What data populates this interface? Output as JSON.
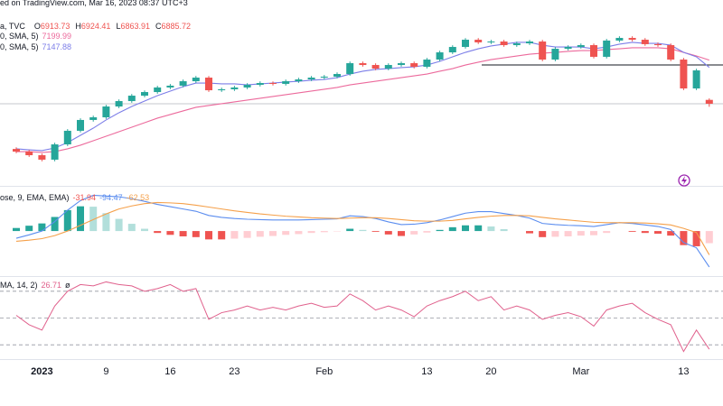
{
  "chart_data": [
    {
      "type": "candlestick",
      "source": "ed on TradingView.com, Mar 16, 2023 08:37 UTC+3",
      "title": "a, TVC",
      "ohlc_prefixes": [
        "O",
        "H",
        "L",
        "C"
      ],
      "categories": [
        null,
        null,
        "2023",
        null,
        null,
        null,
        null,
        "9",
        null,
        null,
        null,
        null,
        "16",
        null,
        null,
        null,
        null,
        "23",
        null,
        null,
        null,
        null,
        null,
        null,
        "Feb",
        null,
        null,
        null,
        null,
        null,
        null,
        null,
        "13",
        null,
        null,
        null,
        null,
        "20",
        null,
        null,
        null,
        null,
        null,
        null,
        "Mar",
        null,
        null,
        null,
        null,
        null,
        null,
        null,
        "13",
        null,
        null
      ],
      "open": [
        6560,
        6541,
        6515,
        6483,
        6593,
        6691,
        6769,
        6788,
        6866,
        6905,
        6944,
        6970,
        7003,
        7016,
        7048,
        7074,
        6983,
        6990,
        7003,
        7022,
        7035,
        7029,
        7048,
        7061,
        7074,
        7081,
        7100,
        7178,
        7165,
        7139,
        7165,
        7178,
        7152,
        7204,
        7256,
        7295,
        7347,
        7328,
        7334,
        7308,
        7321,
        7334,
        7204,
        7282,
        7295,
        7308,
        7224,
        7341,
        7360,
        7347,
        7315,
        7308,
        7204,
        6996,
        6913.73
      ],
      "high": [
        6572,
        6553,
        6527,
        6605,
        6703,
        6781,
        6800,
        6878,
        6917,
        6956,
        6982,
        7015,
        7028,
        7060,
        7086,
        7086,
        7002,
        7015,
        7034,
        7047,
        7047,
        7060,
        7073,
        7086,
        7093,
        7112,
        7190,
        7190,
        7177,
        7177,
        7190,
        7190,
        7216,
        7268,
        7307,
        7359,
        7359,
        7346,
        7346,
        7333,
        7346,
        7346,
        7294,
        7307,
        7320,
        7320,
        7353,
        7372,
        7372,
        7359,
        7327,
        7320,
        7216,
        7138,
        6924.41
      ],
      "low": [
        6529,
        6503,
        6471,
        6471,
        6581,
        6679,
        6757,
        6776,
        6854,
        6893,
        6932,
        6958,
        6991,
        7004,
        7036,
        6971,
        6971,
        6978,
        6991,
        7010,
        7017,
        7017,
        7036,
        7049,
        7062,
        7069,
        7088,
        7153,
        7127,
        7127,
        7153,
        7140,
        7140,
        7192,
        7244,
        7283,
        7316,
        7316,
        7296,
        7296,
        7309,
        7192,
        7192,
        7270,
        7283,
        7212,
        7212,
        7329,
        7335,
        7303,
        7296,
        7192,
        6984,
        6984,
        6863.91
      ],
      "close": [
        6541,
        6515,
        6483,
        6593,
        6691,
        6769,
        6788,
        6866,
        6905,
        6944,
        6970,
        7003,
        7016,
        7048,
        7074,
        6983,
        6990,
        7003,
        7022,
        7035,
        7029,
        7048,
        7061,
        7074,
        7081,
        7100,
        7178,
        7165,
        7139,
        7165,
        7178,
        7152,
        7204,
        7256,
        7295,
        7347,
        7328,
        7334,
        7308,
        7321,
        7334,
        7204,
        7282,
        7295,
        7308,
        7224,
        7341,
        7360,
        7347,
        7315,
        7308,
        7204,
        6996,
        7126,
        6885.72
      ],
      "up_color": "#26a69a",
      "down_color": "#ef5350",
      "series": [
        {
          "name": "0, SMA, 5)",
          "color": "#ec6a9c",
          "values": [
            6541,
            6541,
            6535,
            6541,
            6561,
            6587,
            6619,
            6652,
            6684,
            6717,
            6749,
            6782,
            6808,
            6834,
            6860,
            6873,
            6886,
            6899,
            6912,
            6925,
            6938,
            6951,
            6964,
            6977,
            6990,
            7003,
            7022,
            7035,
            7048,
            7061,
            7074,
            7087,
            7100,
            7120,
            7139,
            7165,
            7185,
            7204,
            7217,
            7230,
            7243,
            7250,
            7256,
            7263,
            7269,
            7269,
            7276,
            7282,
            7289,
            7289,
            7289,
            7282,
            7256,
            7230,
            7199.99
          ]
        },
        {
          "name": "0, SMA, 5)",
          "color": "#7c7ee8",
          "values": [
            6561,
            6554,
            6548,
            6567,
            6606,
            6658,
            6710,
            6769,
            6821,
            6866,
            6905,
            6944,
            6977,
            7009,
            7035,
            7035,
            7029,
            7029,
            7022,
            7029,
            7035,
            7042,
            7048,
            7055,
            7061,
            7074,
            7100,
            7120,
            7133,
            7139,
            7146,
            7152,
            7165,
            7191,
            7224,
            7256,
            7282,
            7302,
            7315,
            7328,
            7328,
            7308,
            7295,
            7295,
            7295,
            7282,
            7295,
            7315,
            7328,
            7321,
            7321,
            7308,
            7256,
            7224,
            7147.88
          ]
        }
      ],
      "hline": 7165,
      "ylim": [
        6300.72,
        7633.22
      ]
    },
    {
      "type": "macd",
      "title": "ose, 9, EMA, EMA)",
      "histogram": [
        8,
        14,
        20,
        37,
        55,
        65,
        64,
        47,
        32,
        19,
        6,
        -5,
        -10,
        -14,
        -16,
        -22,
        -22,
        -20,
        -18,
        -15,
        -13,
        -10,
        -8,
        -5,
        -3,
        -1,
        6,
        3,
        -2,
        -9,
        -13,
        -9,
        -4,
        3,
        10,
        15,
        15,
        12,
        5,
        0,
        -6,
        -16,
        -15,
        -14,
        -12,
        -11,
        -5,
        0,
        -2,
        -5,
        -7,
        -12,
        -37,
        -40,
        -31.94
      ],
      "histogram_colors": {
        "up": "#26a69a",
        "up_fade": "#b2dfdb",
        "down": "#ef5350",
        "down_fade": "#ffcdd2"
      },
      "lines": [
        {
          "color": "#5b8def",
          "values": [
            -19,
            -10,
            0,
            25,
            55,
            80,
            94,
            92,
            90,
            85,
            78,
            70,
            64,
            58,
            52,
            41,
            36,
            33,
            31,
            30,
            29,
            29,
            29,
            30,
            31,
            32,
            40,
            38,
            33,
            24,
            17,
            18,
            22,
            29,
            38,
            47,
            51,
            51,
            46,
            41,
            34,
            20,
            17,
            15,
            14,
            12,
            17,
            22,
            20,
            16,
            12,
            4,
            -30,
            -44,
            -94.47
          ]
        },
        {
          "color": "#f5a04a",
          "values": [
            -27,
            -24,
            -20,
            -12,
            0,
            15,
            30,
            45,
            58,
            66,
            72,
            75,
            74,
            72,
            68,
            63,
            58,
            53,
            49,
            45,
            42,
            39,
            37,
            35,
            34,
            33,
            34,
            35,
            35,
            33,
            30,
            27,
            26,
            26,
            28,
            32,
            36,
            39,
            41,
            41,
            40,
            36,
            32,
            29,
            26,
            23,
            22,
            22,
            22,
            21,
            19,
            16,
            7,
            -4,
            -62.53
          ]
        }
      ],
      "ylim": [
        -116,
        114
      ]
    },
    {
      "type": "rsi",
      "title": "MA, 14, 2)",
      "note": "ø",
      "color": "#e0608c",
      "values": [
        52,
        45,
        41,
        59,
        70,
        75,
        74,
        77,
        75,
        74,
        70,
        72,
        75,
        70,
        72,
        49,
        54,
        56,
        59,
        56,
        58,
        56,
        59,
        61,
        58,
        59,
        68,
        63,
        56,
        59,
        56,
        51,
        59,
        63,
        66,
        70,
        63,
        66,
        56,
        59,
        56,
        49,
        52,
        54,
        51,
        44,
        56,
        59,
        61,
        54,
        49,
        45,
        25,
        41,
        26.71
      ],
      "levels": [
        70,
        50,
        30
      ],
      "ylim": [
        20,
        80
      ]
    }
  ]
}
